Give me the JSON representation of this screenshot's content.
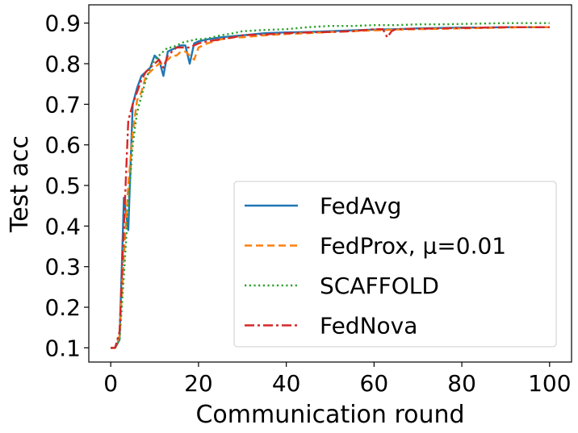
{
  "chart_data": {
    "type": "line",
    "xlabel": "Communication round",
    "ylabel": "Test acc",
    "xlim": [
      -5,
      105
    ],
    "ylim": [
      0.065,
      0.945
    ],
    "xticks": [
      0,
      20,
      40,
      60,
      80,
      100
    ],
    "yticks": [
      0.1,
      0.2,
      0.3,
      0.4,
      0.5,
      0.6,
      0.7,
      0.8,
      0.9
    ],
    "grid": false,
    "legend_position": "bottom-right",
    "series": [
      {
        "name": "FedAvg",
        "color": "#1f77b4",
        "style": "solid",
        "x": [
          0,
          1,
          2,
          3,
          4,
          5,
          6,
          7,
          8,
          9,
          10,
          11,
          12,
          13,
          14,
          15,
          16,
          17,
          18,
          19,
          20,
          22,
          25,
          28,
          30,
          35,
          40,
          45,
          50,
          55,
          60,
          65,
          70,
          75,
          80,
          85,
          90,
          95,
          100
        ],
        "y": [
          0.1,
          0.1,
          0.12,
          0.47,
          0.39,
          0.7,
          0.74,
          0.77,
          0.78,
          0.79,
          0.82,
          0.81,
          0.77,
          0.83,
          0.835,
          0.84,
          0.845,
          0.845,
          0.8,
          0.85,
          0.855,
          0.86,
          0.865,
          0.868,
          0.87,
          0.875,
          0.877,
          0.878,
          0.88,
          0.882,
          0.884,
          0.885,
          0.887,
          0.888,
          0.889,
          0.889,
          0.89,
          0.89,
          0.89
        ]
      },
      {
        "name": "FedProx, μ=0.01",
        "color": "#ff7f0e",
        "style": "dashed",
        "x": [
          0,
          1,
          2,
          3,
          4,
          5,
          6,
          7,
          8,
          9,
          10,
          11,
          12,
          13,
          14,
          15,
          16,
          17,
          18,
          19,
          20,
          22,
          25,
          28,
          30,
          35,
          40,
          45,
          50,
          55,
          60,
          65,
          70,
          75,
          80,
          85,
          90,
          95,
          100
        ],
        "y": [
          0.1,
          0.1,
          0.13,
          0.33,
          0.5,
          0.63,
          0.71,
          0.73,
          0.77,
          0.78,
          0.79,
          0.8,
          0.8,
          0.81,
          0.82,
          0.82,
          0.83,
          0.83,
          0.82,
          0.81,
          0.84,
          0.85,
          0.86,
          0.865,
          0.865,
          0.87,
          0.873,
          0.875,
          0.878,
          0.88,
          0.882,
          0.884,
          0.885,
          0.886,
          0.887,
          0.888,
          0.889,
          0.89,
          0.89
        ]
      },
      {
        "name": "SCAFFOLD",
        "color": "#2ca02c",
        "style": "dotted",
        "x": [
          0,
          1,
          2,
          3,
          4,
          5,
          6,
          7,
          8,
          9,
          10,
          11,
          12,
          13,
          14,
          15,
          16,
          17,
          18,
          19,
          20,
          22,
          25,
          28,
          30,
          35,
          40,
          45,
          50,
          55,
          60,
          65,
          70,
          75,
          80,
          85,
          90,
          95,
          100
        ],
        "y": [
          0.1,
          0.1,
          0.12,
          0.28,
          0.45,
          0.6,
          0.68,
          0.72,
          0.76,
          0.79,
          0.81,
          0.82,
          0.83,
          0.84,
          0.84,
          0.845,
          0.85,
          0.855,
          0.855,
          0.86,
          0.86,
          0.862,
          0.87,
          0.875,
          0.88,
          0.883,
          0.885,
          0.89,
          0.893,
          0.893,
          0.895,
          0.895,
          0.897,
          0.897,
          0.898,
          0.899,
          0.9,
          0.9,
          0.9
        ]
      },
      {
        "name": "FedNova",
        "color": "#d62728",
        "style": "dashdot",
        "x": [
          0,
          1,
          2,
          3,
          4,
          5,
          6,
          7,
          8,
          9,
          10,
          11,
          12,
          13,
          14,
          15,
          16,
          17,
          18,
          19,
          20,
          22,
          25,
          28,
          30,
          35,
          40,
          45,
          50,
          55,
          60,
          62,
          63,
          64,
          65,
          70,
          75,
          80,
          85,
          90,
          95,
          100
        ],
        "y": [
          0.1,
          0.1,
          0.14,
          0.4,
          0.66,
          0.7,
          0.73,
          0.76,
          0.78,
          0.79,
          0.8,
          0.81,
          0.79,
          0.82,
          0.83,
          0.84,
          0.84,
          0.84,
          0.84,
          0.845,
          0.85,
          0.855,
          0.86,
          0.865,
          0.87,
          0.872,
          0.875,
          0.877,
          0.878,
          0.88,
          0.885,
          0.885,
          0.865,
          0.88,
          0.885,
          0.886,
          0.887,
          0.888,
          0.889,
          0.89,
          0.89,
          0.89
        ]
      }
    ]
  }
}
